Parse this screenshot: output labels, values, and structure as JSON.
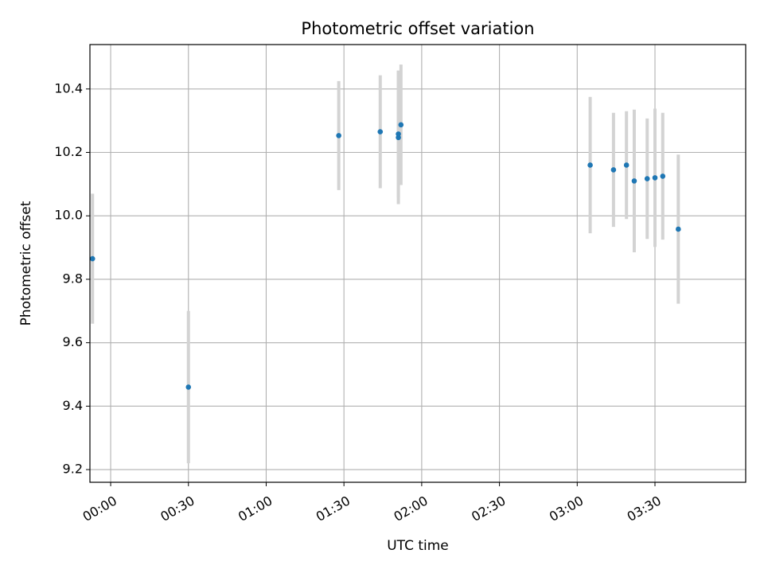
{
  "chart_data": {
    "type": "scatter",
    "title": "Photometric offset variation",
    "xlabel": "UTC time",
    "ylabel": "Photometric offset",
    "xlim": [
      "23:52",
      "04:05"
    ],
    "ylim": [
      9.16,
      10.54
    ],
    "x_ticks": [
      "00:00",
      "00:30",
      "01:00",
      "01:30",
      "02:00",
      "02:30",
      "03:00",
      "03:30"
    ],
    "y_ticks": [
      "9.2",
      "9.4",
      "9.6",
      "9.8",
      "10.0",
      "10.2",
      "10.4"
    ],
    "grid": true,
    "legend": "none",
    "colors": {
      "marker": "#1f77b4",
      "errorbar": "#d3d3d3",
      "grid": "#b0b0b0"
    },
    "points": [
      {
        "x": "23:53",
        "y": 9.865,
        "err": 0.205
      },
      {
        "x": "00:30",
        "y": 9.46,
        "err": 0.24
      },
      {
        "x": "01:28",
        "y": 10.253,
        "err": 0.172
      },
      {
        "x": "01:44",
        "y": 10.265,
        "err": 0.178
      },
      {
        "x": "01:51",
        "y": 10.247,
        "err": 0.21
      },
      {
        "x": "01:51",
        "y": 10.258,
        "err": 0.2
      },
      {
        "x": "01:52",
        "y": 10.287,
        "err": 0.19
      },
      {
        "x": "03:05",
        "y": 10.16,
        "err": 0.215
      },
      {
        "x": "03:14",
        "y": 10.145,
        "err": 0.18
      },
      {
        "x": "03:19",
        "y": 10.16,
        "err": 0.17
      },
      {
        "x": "03:22",
        "y": 10.11,
        "err": 0.225
      },
      {
        "x": "03:27",
        "y": 10.117,
        "err": 0.19
      },
      {
        "x": "03:30",
        "y": 10.12,
        "err": 0.218
      },
      {
        "x": "03:33",
        "y": 10.125,
        "err": 0.2
      },
      {
        "x": "03:39",
        "y": 9.958,
        "err": 0.235
      }
    ]
  }
}
